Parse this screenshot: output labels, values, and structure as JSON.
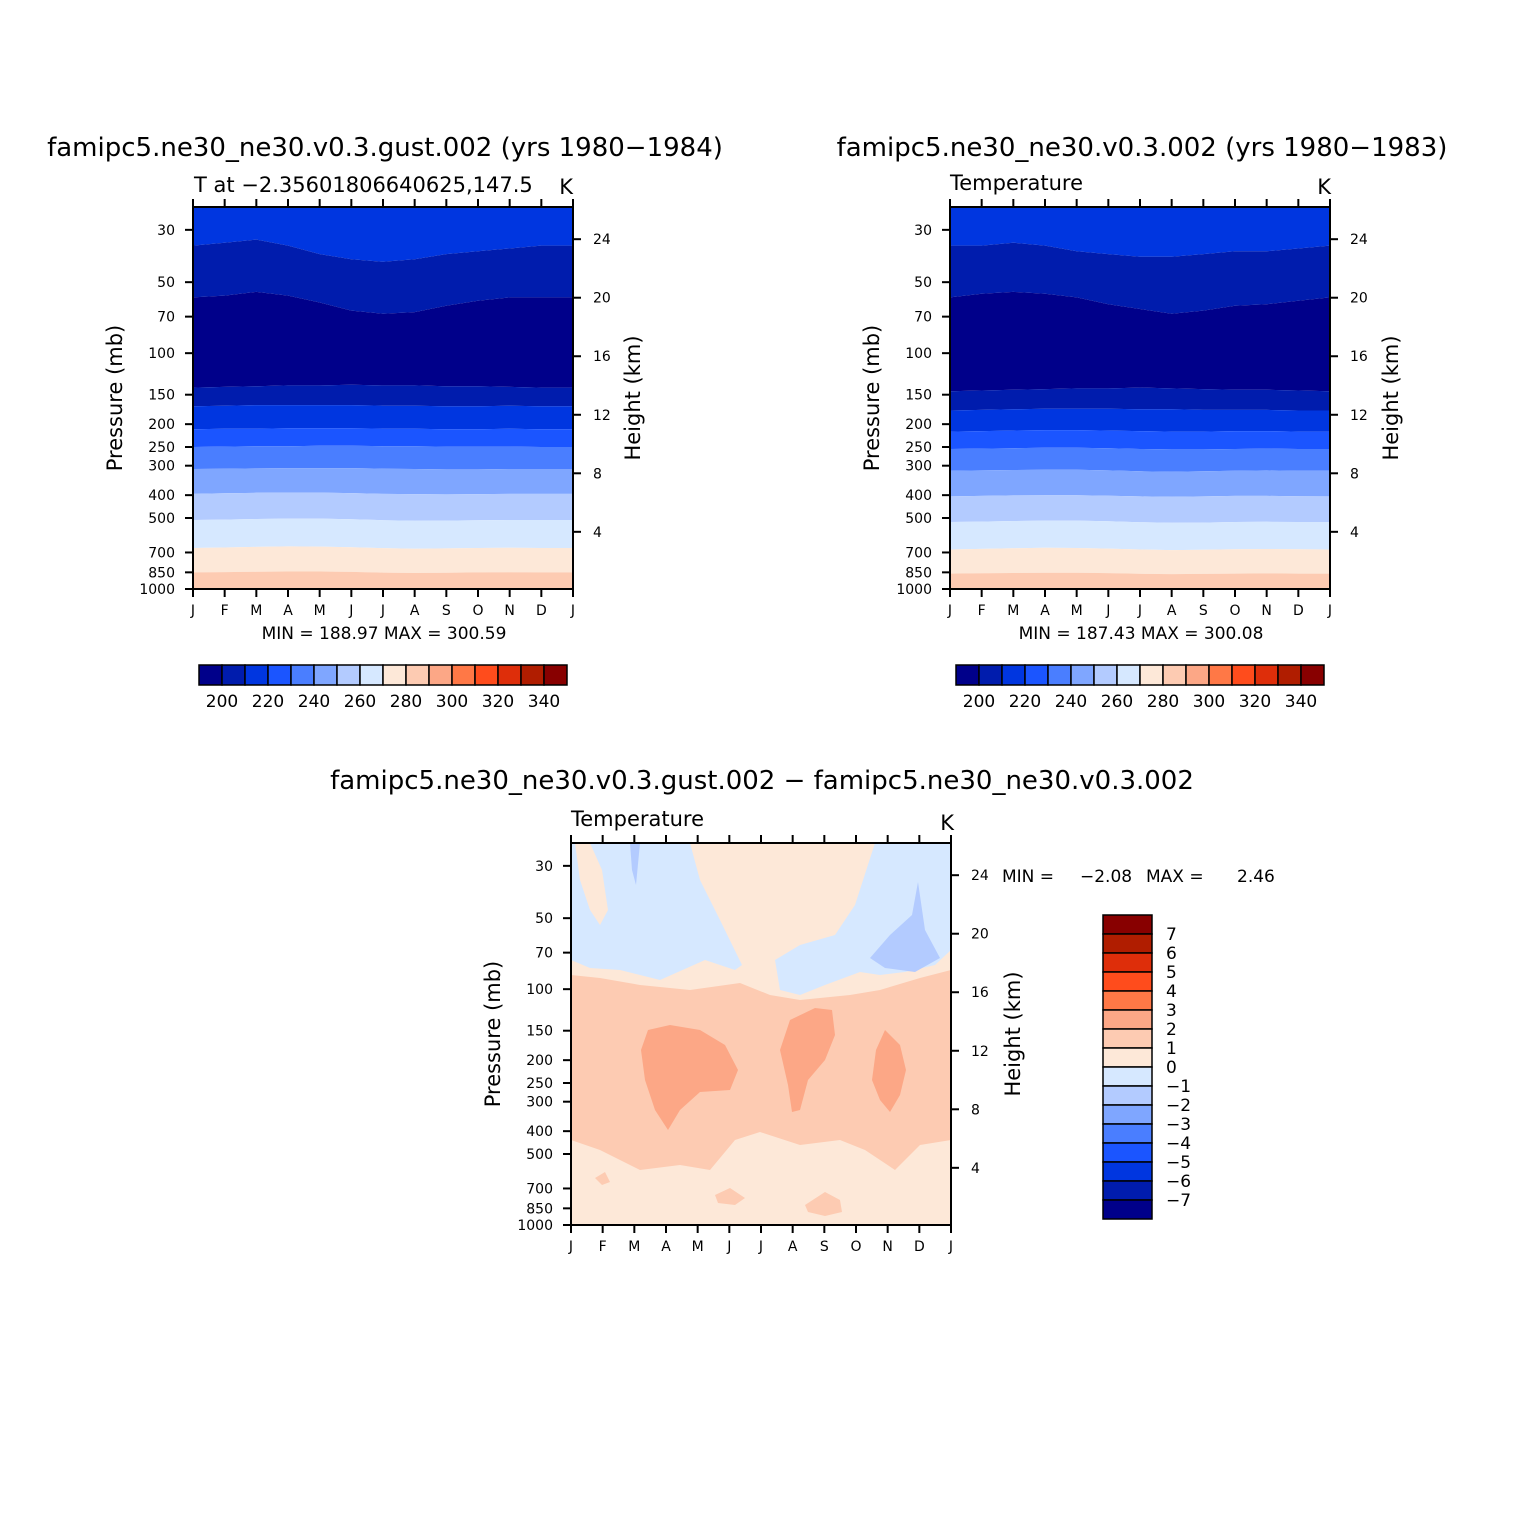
{
  "colors": {
    "temp_levels": [
      "#00008a",
      "#001cad",
      "#0036e0",
      "#1b55ff",
      "#4a7eff",
      "#7fa6ff",
      "#b3cbff",
      "#d6e8ff",
      "#fde8d8",
      "#fdcbb2",
      "#fca786",
      "#ff7846",
      "#ff4c1c",
      "#de2e0a",
      "#b01d00",
      "#880000"
    ],
    "diff_levels": [
      "#00008a",
      "#001cad",
      "#0036e0",
      "#1b55ff",
      "#4a7eff",
      "#7fa6ff",
      "#b3cbff",
      "#d6e8ff",
      "#fde8d8",
      "#fdcbb2",
      "#fca786",
      "#ff7846",
      "#ff4c1c",
      "#de2e0a",
      "#b01d00",
      "#880000"
    ]
  },
  "chart_data": [
    {
      "type": "heatmap",
      "title": "famipc5.ne30_ne30.v0.3.gust.002 (yrs 1980−1984)",
      "subtitle_left": "T at −2.35601806640625,147.5",
      "subtitle_right": "K",
      "ylabel": "Pressure (mb)",
      "ylabel_right": "Height (km)",
      "x_ticks": [
        "J",
        "F",
        "M",
        "A",
        "M",
        "J",
        "J",
        "A",
        "S",
        "O",
        "N",
        "D",
        "J"
      ],
      "y_ticks": [
        "30",
        "50",
        "70",
        "100",
        "150",
        "200",
        "250",
        "300",
        "400",
        "500",
        "700",
        "850",
        "1000"
      ],
      "y_ticks_right": [
        "24",
        "20",
        "16",
        "12",
        "8",
        "4"
      ],
      "y_log_scale": true,
      "ylim": [
        1000,
        24
      ],
      "min_max_text": "MIN = 188.97 MAX = 300.59",
      "colorbar_labels": [
        "200",
        "220",
        "240",
        "260",
        "280",
        "300",
        "320",
        "340"
      ],
      "bands_note": "contour boundaries in pressure (mb) per month J..J",
      "boundaries": [
        [
          35,
          34,
          33,
          35,
          38,
          40,
          41,
          40,
          38,
          37,
          36,
          35,
          35
        ],
        [
          58,
          57,
          55,
          57,
          61,
          66,
          68,
          67,
          63,
          60,
          58,
          58,
          58
        ],
        [
          140,
          139,
          138,
          137,
          137,
          136,
          137,
          137,
          138,
          138,
          139,
          140,
          140
        ],
        [
          168,
          167,
          166,
          166,
          166,
          166,
          167,
          167,
          168,
          168,
          167,
          168,
          168
        ],
        [
          210,
          209,
          209,
          208,
          208,
          208,
          209,
          209,
          210,
          210,
          209,
          210,
          210
        ],
        [
          250,
          249,
          248,
          248,
          247,
          247,
          248,
          248,
          249,
          249,
          249,
          250,
          250
        ],
        [
          310,
          309,
          308,
          307,
          307,
          307,
          309,
          310,
          311,
          311,
          310,
          310,
          310
        ],
        [
          395,
          393,
          391,
          390,
          390,
          392,
          395,
          396,
          397,
          396,
          395,
          395,
          395
        ],
        [
          510,
          508,
          505,
          503,
          503,
          506,
          511,
          514,
          513,
          511,
          510,
          510,
          510
        ],
        [
          670,
          667,
          663,
          660,
          661,
          665,
          671,
          675,
          673,
          670,
          669,
          670,
          670
        ],
        [
          850,
          848,
          845,
          843,
          843,
          846,
          852,
          855,
          853,
          850,
          849,
          850,
          850
        ]
      ],
      "band_levels": [
        2,
        1,
        0,
        1,
        2,
        3,
        4,
        5,
        6,
        7,
        8,
        9,
        10
      ]
    },
    {
      "type": "heatmap",
      "title": "famipc5.ne30_ne30.v0.3.002 (yrs 1980−1983)",
      "subtitle_left": "Temperature",
      "subtitle_right": "K",
      "ylabel": "Pressure (mb)",
      "ylabel_right": "Height (km)",
      "x_ticks": [
        "J",
        "F",
        "M",
        "A",
        "M",
        "J",
        "J",
        "A",
        "S",
        "O",
        "N",
        "D",
        "J"
      ],
      "y_ticks": [
        "30",
        "50",
        "70",
        "100",
        "150",
        "200",
        "250",
        "300",
        "400",
        "500",
        "700",
        "850",
        "1000"
      ],
      "y_ticks_right": [
        "24",
        "20",
        "16",
        "12",
        "8",
        "4"
      ],
      "y_log_scale": true,
      "ylim": [
        1000,
        24
      ],
      "min_max_text": "MIN = 187.43 MAX = 300.08",
      "colorbar_labels": [
        "200",
        "220",
        "240",
        "260",
        "280",
        "300",
        "320",
        "340"
      ],
      "boundaries": [
        [
          35,
          35,
          34,
          35,
          37,
          38,
          39,
          39,
          38,
          37,
          37,
          36,
          35
        ],
        [
          58,
          56,
          55,
          56,
          58,
          62,
          65,
          68,
          66,
          63,
          62,
          60,
          58
        ],
        [
          145,
          144,
          143,
          142,
          141,
          141,
          140,
          141,
          142,
          143,
          143,
          144,
          145
        ],
        [
          175,
          174,
          173,
          172,
          172,
          172,
          173,
          173,
          174,
          174,
          174,
          175,
          175
        ],
        [
          215,
          214,
          213,
          212,
          212,
          213,
          214,
          215,
          215,
          214,
          214,
          215,
          215
        ],
        [
          255,
          254,
          253,
          252,
          252,
          253,
          255,
          256,
          256,
          255,
          254,
          255,
          255
        ],
        [
          315,
          314,
          313,
          312,
          312,
          314,
          317,
          318,
          317,
          315,
          314,
          315,
          315
        ],
        [
          405,
          403,
          401,
          400,
          400,
          402,
          405,
          406,
          405,
          403,
          403,
          404,
          405
        ],
        [
          520,
          518,
          515,
          513,
          513,
          516,
          521,
          524,
          523,
          520,
          519,
          520,
          520
        ],
        [
          680,
          676,
          672,
          669,
          670,
          674,
          680,
          684,
          682,
          678,
          677,
          679,
          680
        ],
        [
          860,
          858,
          855,
          853,
          853,
          856,
          862,
          865,
          863,
          860,
          859,
          860,
          860
        ]
      ],
      "band_levels": [
        2,
        1,
        0,
        1,
        2,
        3,
        4,
        5,
        6,
        7,
        8,
        9,
        10
      ]
    },
    {
      "type": "heatmap",
      "title": "famipc5.ne30_ne30.v0.3.gust.002 − famipc5.ne30_ne30.v0.3.002",
      "subtitle_left": "Temperature",
      "subtitle_right": "K",
      "ylabel": "Pressure (mb)",
      "ylabel_right": "Height (km)",
      "x_ticks": [
        "J",
        "F",
        "M",
        "A",
        "M",
        "J",
        "J",
        "A",
        "S",
        "O",
        "N",
        "D",
        "J"
      ],
      "y_ticks": [
        "30",
        "50",
        "70",
        "100",
        "150",
        "200",
        "250",
        "300",
        "400",
        "500",
        "700",
        "850",
        "1000"
      ],
      "y_ticks_right": [
        "24",
        "20",
        "16",
        "12",
        "8",
        "4"
      ],
      "y_log_scale": true,
      "ylim": [
        1000,
        24
      ],
      "min_text": "MIN =",
      "min_value": "−2.08",
      "max_text": "MAX =",
      "max_value": "2.46",
      "colorbar_labels": [
        "7",
        "6",
        "5",
        "4",
        "3",
        "2",
        "1",
        "0",
        "−1",
        "−2",
        "−3",
        "−4",
        "−5",
        "−6",
        "−7"
      ],
      "note": "difference field: near 0 to −1 above ~90 mb except around J–A; 1–2 K in 100–450 mb; 2–3 K patches near 150–350 mb in Mar–May, Jul–Aug, Nov"
    }
  ]
}
